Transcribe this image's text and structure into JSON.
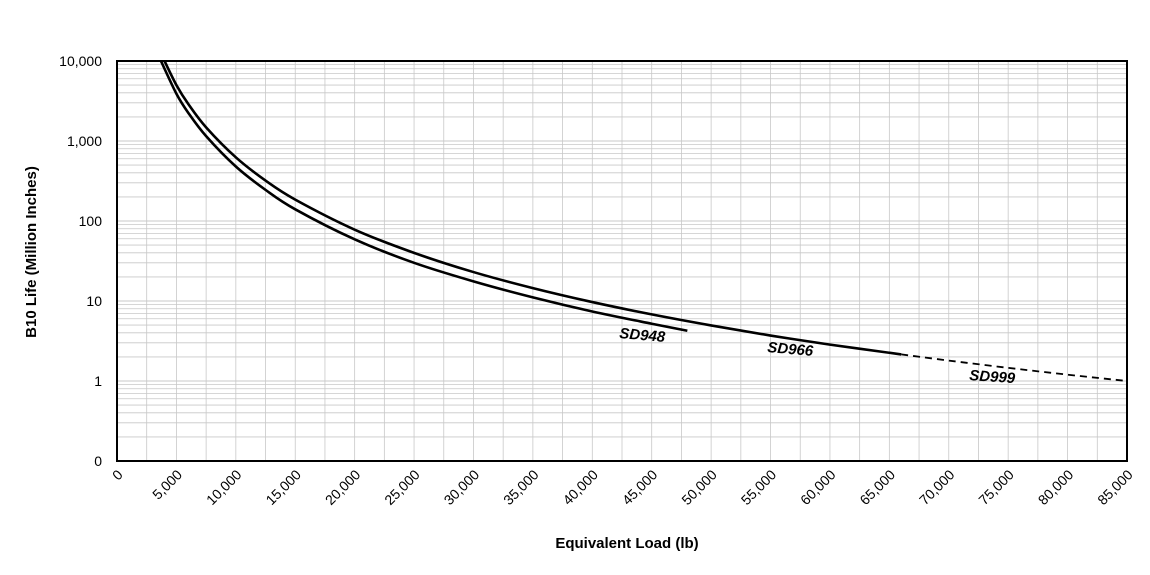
{
  "chart_data": {
    "type": "line",
    "title": "",
    "xlabel": "Equivalent Load (lb)",
    "ylabel": "B10 Life (Million Inches)",
    "xlim": [
      0,
      85000
    ],
    "ylim": [
      0.1,
      10000
    ],
    "y_scale": "log",
    "grid": true,
    "legend": "none (series labeled inline)",
    "x_ticks": [
      "0",
      "5,000",
      "10,000",
      "15,000",
      "20,000",
      "25,000",
      "30,000",
      "35,000",
      "40,000",
      "45,000",
      "50,000",
      "55,000",
      "60,000",
      "65,000",
      "70,000",
      "75,000",
      "80,000",
      "85,000"
    ],
    "y_ticks": [
      {
        "value": 0.1,
        "label": "0"
      },
      {
        "value": 1,
        "label": "1"
      },
      {
        "value": 10,
        "label": "10"
      },
      {
        "value": 100,
        "label": "100"
      },
      {
        "value": 1000,
        "label": "1,000"
      },
      {
        "value": 10000,
        "label": "10,000"
      }
    ],
    "series": [
      {
        "name": "SD948",
        "style": "solid",
        "x": [
          3700,
          5000,
          6000,
          7500,
          10000,
          12500,
          15000,
          20000,
          25000,
          30000,
          35000,
          40000,
          45000,
          48000
        ],
        "y": [
          10000,
          3900,
          2250,
          1150,
          480,
          245,
          140,
          59,
          30,
          17.6,
          11.1,
          7.4,
          5.2,
          4.25
        ]
      },
      {
        "name": "SD966",
        "style": "solid",
        "x": [
          4000,
          5000,
          6000,
          7500,
          10000,
          12500,
          15000,
          20000,
          25000,
          30000,
          35000,
          40000,
          45000,
          50000,
          55000,
          60000,
          66000
        ],
        "y": [
          10000,
          5000,
          2900,
          1480,
          625,
          320,
          185,
          78,
          40,
          23,
          14.5,
          9.7,
          6.8,
          4.95,
          3.7,
          2.85,
          2.15
        ]
      },
      {
        "name": "SD999",
        "style": "dashed",
        "x": [
          66000,
          70000,
          75000,
          80000,
          85000
        ],
        "y": [
          2.15,
          1.8,
          1.46,
          1.2,
          1.0
        ]
      }
    ],
    "colors": {
      "line": "#000000",
      "grid": "#c8c8c8",
      "axis": "#000000",
      "background": "#ffffff"
    }
  }
}
